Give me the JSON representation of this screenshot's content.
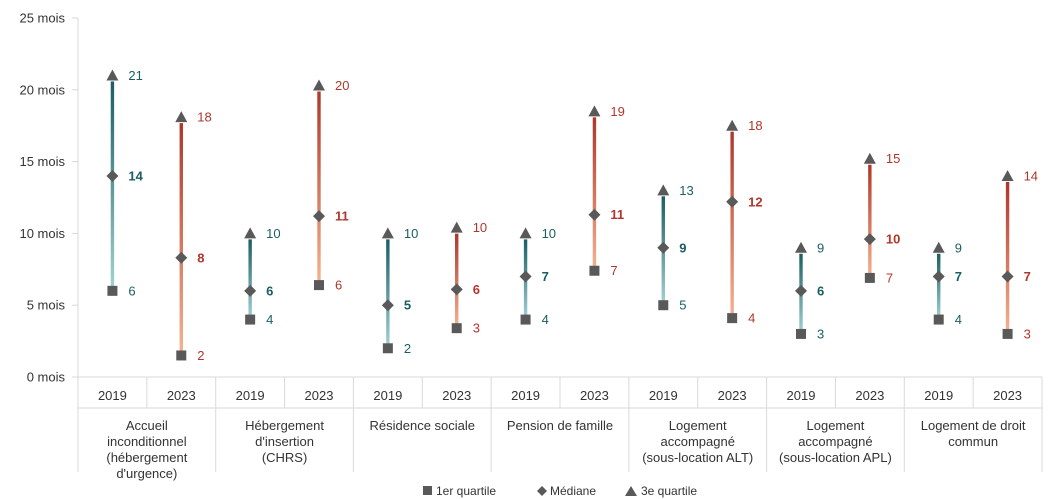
{
  "chart_data": {
    "type": "range",
    "y_tick_labels": [
      "0 mois",
      "5 mois",
      "10 mois",
      "15 mois",
      "20 mois",
      "25 mois"
    ],
    "ylim": [
      0,
      25
    ],
    "grid": false,
    "legend_position": "bottom",
    "legend": [
      "1er quartile",
      "Médiane",
      "3e quartile"
    ],
    "colors": {
      "y2019": "#1a5e63",
      "y2019_light": "#a3d3d6",
      "y2023": "#b0362a",
      "y2023_light": "#f5b48f",
      "marker": "#595959",
      "axis": "#d9d9d9"
    },
    "groups": [
      {
        "label": "Accueil inconditionnel (hébergement d'urgence)",
        "label_lines": [
          "Accueil",
          "inconditionnel",
          "(hébergement",
          "d'urgence)"
        ],
        "points": [
          {
            "year": "2019",
            "q1": 6,
            "median": 14,
            "q3": 21
          },
          {
            "year": "2023",
            "q1": 1.5,
            "median": 8.3,
            "q3": 18.1,
            "q1_label": "2",
            "median_label": "8",
            "q3_label": "18"
          }
        ]
      },
      {
        "label": "Hébergement d'insertion (CHRS)",
        "label_lines": [
          "Hébergement",
          "d'insertion",
          "(CHRS)"
        ],
        "points": [
          {
            "year": "2019",
            "q1": 4,
            "median": 6,
            "q3": 10
          },
          {
            "year": "2023",
            "q1": 6.4,
            "median": 11.2,
            "q3": 20.3,
            "q1_label": "6",
            "median_label": "11",
            "q3_label": "20"
          }
        ]
      },
      {
        "label": "Résidence sociale",
        "label_lines": [
          "Résidence sociale"
        ],
        "points": [
          {
            "year": "2019",
            "q1": 2,
            "median": 5,
            "q3": 10
          },
          {
            "year": "2023",
            "q1": 3.4,
            "median": 6.1,
            "q3": 10.4,
            "q1_label": "3",
            "median_label": "6",
            "q3_label": "10"
          }
        ]
      },
      {
        "label": "Pension de famille",
        "label_lines": [
          "Pension de famille"
        ],
        "points": [
          {
            "year": "2019",
            "q1": 4,
            "median": 7,
            "q3": 10
          },
          {
            "year": "2023",
            "q1": 7.4,
            "median": 11.3,
            "q3": 18.5,
            "q1_label": "7",
            "median_label": "11",
            "q3_label": "19"
          }
        ]
      },
      {
        "label": "Logement accompagné (sous-location ALT)",
        "label_lines": [
          "Logement",
          "accompagné",
          "(sous-location ALT)"
        ],
        "points": [
          {
            "year": "2019",
            "q1": 5,
            "median": 9,
            "q3": 13
          },
          {
            "year": "2023",
            "q1": 4.1,
            "median": 12.2,
            "q3": 17.5,
            "q1_label": "4",
            "median_label": "12",
            "q3_label": "18"
          }
        ]
      },
      {
        "label": "Logement accompagné (sous-location APL)",
        "label_lines": [
          "Logement",
          "accompagné",
          "(sous-location APL)"
        ],
        "points": [
          {
            "year": "2019",
            "q1": 3,
            "median": 6,
            "q3": 9
          },
          {
            "year": "2023",
            "q1": 6.9,
            "median": 9.6,
            "q3": 15.2,
            "q1_label": "7",
            "median_label": "10",
            "q3_label": "15"
          }
        ]
      },
      {
        "label": "Logement de droit commun",
        "label_lines": [
          "Logement de droit",
          "commun"
        ],
        "points": [
          {
            "year": "2019",
            "q1": 4,
            "median": 7,
            "q3": 9
          },
          {
            "year": "2023",
            "q1": 3,
            "median": 7,
            "q3": 14
          }
        ]
      }
    ]
  }
}
